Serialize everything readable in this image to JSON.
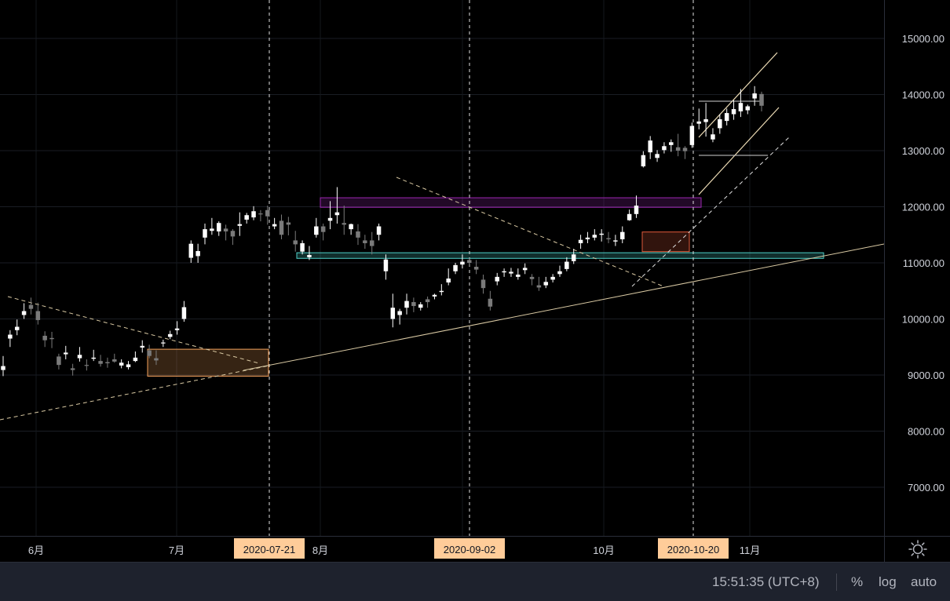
{
  "chart_data": {
    "type": "candlestick",
    "y_ticks": [
      "15000.00",
      "14000.00",
      "13000.00",
      "12000.00",
      "11000.00",
      "10000.00",
      "9000.00",
      "8000.00",
      "7000.00"
    ],
    "y_range": [
      6200,
      15600
    ],
    "x_ticks": [
      "6月",
      "7月",
      "8月",
      "10月",
      "11月"
    ],
    "highlighted_dates": [
      "2020-07-21",
      "2020-09-02",
      "2020-10-20"
    ],
    "zones": [
      {
        "from": 11080,
        "to": 11180,
        "color": "#4dd0c8"
      },
      {
        "from": 11990,
        "to": 12160,
        "color": "#9c27b0"
      },
      {
        "from": 8980,
        "to": 9460,
        "color": "#f5a25d"
      },
      {
        "from": 11200,
        "to": 11550,
        "color": "#e05a3a"
      }
    ],
    "candles": [
      [
        9090,
        9160,
        8980,
        9340
      ],
      [
        9650,
        9720,
        9500,
        9800
      ],
      [
        9800,
        9860,
        9710,
        9990
      ],
      [
        10070,
        10140,
        10000,
        10280
      ],
      [
        10250,
        10180,
        10080,
        10380
      ],
      [
        10140,
        9980,
        9900,
        10290
      ],
      [
        9700,
        9620,
        9500,
        9780
      ],
      [
        9660,
        9640,
        9480,
        9770
      ],
      [
        9330,
        9180,
        9100,
        9380
      ],
      [
        9370,
        9400,
        9280,
        9520
      ],
      [
        9120,
        9090,
        8990,
        9200
      ],
      [
        9300,
        9360,
        9240,
        9500
      ],
      [
        9180,
        9170,
        9080,
        9280
      ],
      [
        9290,
        9310,
        9250,
        9450
      ],
      [
        9250,
        9200,
        9150,
        9360
      ],
      [
        9230,
        9210,
        9130,
        9310
      ],
      [
        9280,
        9240,
        9220,
        9380
      ],
      [
        9170,
        9220,
        9120,
        9280
      ],
      [
        9140,
        9190,
        9100,
        9250
      ],
      [
        9250,
        9310,
        9230,
        9420
      ],
      [
        9490,
        9520,
        9400,
        9620
      ],
      [
        9440,
        9340,
        9300,
        9540
      ],
      [
        9300,
        9260,
        9180,
        9440
      ],
      [
        9570,
        9580,
        9500,
        9630
      ],
      [
        9680,
        9730,
        9640,
        9790
      ],
      [
        9800,
        9830,
        9720,
        9960
      ],
      [
        10000,
        10210,
        9950,
        10320
      ],
      [
        11090,
        11340,
        11000,
        11400
      ],
      [
        11120,
        11210,
        11000,
        11340
      ],
      [
        11450,
        11600,
        11330,
        11700
      ],
      [
        11570,
        11610,
        11500,
        11800
      ],
      [
        11560,
        11710,
        11480,
        11740
      ],
      [
        11610,
        11560,
        11400,
        11680
      ],
      [
        11570,
        11470,
        11320,
        11600
      ],
      [
        11660,
        11690,
        11480,
        11900
      ],
      [
        11770,
        11850,
        11700,
        11890
      ],
      [
        11810,
        11920,
        11760,
        12010
      ],
      [
        11880,
        11870,
        11740,
        11940
      ],
      [
        11940,
        11830,
        11680,
        12020
      ],
      [
        11650,
        11690,
        11600,
        11800
      ],
      [
        11750,
        11500,
        11420,
        11860
      ],
      [
        11720,
        11680,
        11490,
        11820
      ],
      [
        11400,
        11330,
        11200,
        11570
      ],
      [
        11200,
        11350,
        11150,
        11400
      ],
      [
        11100,
        11140,
        11050,
        11300
      ],
      [
        11500,
        11650,
        11450,
        11800
      ],
      [
        11650,
        11550,
        11400,
        11700
      ],
      [
        11750,
        11800,
        11600,
        12100
      ],
      [
        11850,
        11900,
        11700,
        12350
      ],
      [
        11710,
        11680,
        11500,
        12020
      ],
      [
        11600,
        11690,
        11500,
        11700
      ],
      [
        11560,
        11450,
        11320,
        11690
      ],
      [
        11400,
        11350,
        11250,
        11500
      ],
      [
        11400,
        11300,
        11150,
        11550
      ],
      [
        11500,
        11650,
        11400,
        11700
      ],
      [
        10850,
        11060,
        10700,
        11150
      ],
      [
        10000,
        10200,
        9850,
        10450
      ],
      [
        10070,
        10140,
        9900,
        10180
      ],
      [
        10200,
        10320,
        10080,
        10450
      ],
      [
        10300,
        10230,
        10120,
        10380
      ],
      [
        10200,
        10260,
        10150,
        10300
      ],
      [
        10350,
        10300,
        10200,
        10400
      ],
      [
        10400,
        10430,
        10350,
        10450
      ],
      [
        10480,
        10500,
        10420,
        10620
      ],
      [
        10650,
        10720,
        10600,
        10900
      ],
      [
        10850,
        10960,
        10800,
        11000
      ],
      [
        10970,
        11020,
        10900,
        11150
      ],
      [
        11050,
        11000,
        10950,
        11080
      ],
      [
        10930,
        10880,
        10800,
        11050
      ],
      [
        10700,
        10550,
        10450,
        10790
      ],
      [
        10360,
        10220,
        10150,
        10500
      ],
      [
        10670,
        10750,
        10600,
        10820
      ],
      [
        10830,
        10850,
        10750,
        10900
      ],
      [
        10810,
        10840,
        10750,
        10910
      ],
      [
        10750,
        10790,
        10700,
        10900
      ],
      [
        10870,
        10910,
        10800,
        10990
      ],
      [
        10750,
        10710,
        10600,
        10800
      ],
      [
        10600,
        10560,
        10500,
        10750
      ],
      [
        10600,
        10660,
        10550,
        10750
      ],
      [
        10700,
        10750,
        10650,
        10800
      ],
      [
        10800,
        10850,
        10750,
        10950
      ],
      [
        10890,
        11020,
        10850,
        11100
      ],
      [
        11030,
        11150,
        10980,
        11250
      ],
      [
        11350,
        11410,
        11250,
        11500
      ],
      [
        11420,
        11450,
        11350,
        11550
      ],
      [
        11450,
        11500,
        11400,
        11600
      ],
      [
        11500,
        11520,
        11380,
        11600
      ],
      [
        11440,
        11420,
        11350,
        11550
      ],
      [
        11380,
        11400,
        11300,
        11500
      ],
      [
        11420,
        11550,
        11350,
        11650
      ],
      [
        11760,
        11870,
        11750,
        11950
      ],
      [
        11870,
        12020,
        11800,
        12200
      ],
      [
        12720,
        12920,
        12700,
        12990
      ],
      [
        12970,
        13180,
        12850,
        13260
      ],
      [
        12870,
        12940,
        12800,
        13010
      ],
      [
        13010,
        13080,
        12950,
        13150
      ],
      [
        13100,
        13150,
        12980,
        13200
      ],
      [
        13060,
        13000,
        12900,
        13300
      ],
      [
        13050,
        12990,
        12850,
        13080
      ],
      [
        13100,
        13440,
        13050,
        13500
      ],
      [
        13480,
        13520,
        13380,
        13750
      ],
      [
        13510,
        13560,
        13250,
        13850
      ],
      [
        13200,
        13290,
        13150,
        13400
      ],
      [
        13400,
        13560,
        13300,
        13650
      ],
      [
        13530,
        13670,
        13450,
        13750
      ],
      [
        13650,
        13740,
        13550,
        13900
      ],
      [
        13700,
        13850,
        13600,
        14100
      ],
      [
        13720,
        13790,
        13650,
        13820
      ],
      [
        13930,
        14020,
        13800,
        14150
      ],
      [
        14010,
        13800,
        13700,
        14050
      ]
    ]
  },
  "time_axis": {
    "labels": [
      "6月",
      "7月",
      "8月",
      "10月",
      "11月"
    ],
    "date_badges": [
      "2020-07-21",
      "2020-09-02",
      "2020-10-20"
    ]
  },
  "price_axis": {
    "labels": [
      "15000.00",
      "14000.00",
      "13000.00",
      "12000.00",
      "11000.00",
      "10000.00",
      "9000.00",
      "8000.00",
      "7000.00"
    ]
  },
  "status": {
    "time": "15:51:35 (UTC+8)",
    "percent": "%",
    "log": "log",
    "auto": "auto"
  },
  "colors": {
    "up": "#ffffff",
    "down": "#7a7a7a",
    "background": "#000000",
    "trend": "#f0dfb8"
  }
}
